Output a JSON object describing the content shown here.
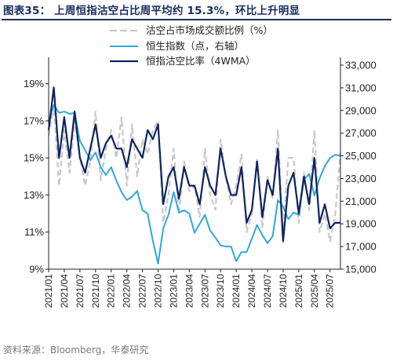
{
  "figure": {
    "title": "图表35：  上周恒指沽空占比周平均约 15.3%，环比上升明显",
    "source": "资料来源：Bloomberg，华泰研究"
  },
  "colors": {
    "short_ratio": "#c8c8c8",
    "hsi": "#2ea8df",
    "short_4wma": "#0e2461",
    "axis": "#222222",
    "title": "#1a2b5e"
  },
  "chart_data": {
    "type": "line",
    "legend": [
      "沽空占市场成交额比例（%）",
      "恒生指数（点，右轴）",
      "恒指沽空比率（4WMA）"
    ],
    "legend_position": "top-center",
    "y_left": {
      "ticks": [
        "9%",
        "11%",
        "13%",
        "15%",
        "17%",
        "19%"
      ],
      "range": [
        9,
        20
      ]
    },
    "y_right": {
      "ticks": [
        "15,000",
        "17,000",
        "19,000",
        "21,000",
        "23,000",
        "25,000",
        "27,000",
        "29,000",
        "31,000",
        "33,000"
      ],
      "range": [
        15000,
        33000
      ]
    },
    "x_ticks": [
      "2021/01",
      "2021/04",
      "2021/07",
      "2021/10",
      "2022/01",
      "2022/04",
      "2022/07",
      "2022/10",
      "2023/01",
      "2023/04",
      "2023/07",
      "2023/10",
      "2024/01",
      "2024/04",
      "2024/07",
      "2024/10",
      "2025/01",
      "2025/04",
      "2025/07"
    ],
    "x_range": [
      "2021/01",
      "2025/09"
    ],
    "grid": false,
    "series": [
      {
        "name": "沽空占市场成交额比例（%）",
        "axis": "left",
        "style": "dashed",
        "x": [
          "2021/01",
          "2021/02",
          "2021/03",
          "2021/04",
          "2021/05",
          "2021/06",
          "2021/07",
          "2021/08",
          "2021/09",
          "2021/10",
          "2021/11",
          "2021/12",
          "2022/01",
          "2022/02",
          "2022/03",
          "2022/04",
          "2022/05",
          "2022/06",
          "2022/07",
          "2022/08",
          "2022/09",
          "2022/10",
          "2022/11",
          "2022/12",
          "2023/01",
          "2023/02",
          "2023/03",
          "2023/04",
          "2023/05",
          "2023/06",
          "2023/07",
          "2023/08",
          "2023/09",
          "2023/10",
          "2023/11",
          "2023/12",
          "2024/01",
          "2024/02",
          "2024/03",
          "2024/04",
          "2024/05",
          "2024/06",
          "2024/07",
          "2024/08",
          "2024/09",
          "2024/10",
          "2024/11",
          "2024/12",
          "2025/01",
          "2025/02",
          "2025/03",
          "2025/04",
          "2025/05",
          "2025/06",
          "2025/07",
          "2025/08",
          "2025/09"
        ],
        "values": [
          16.2,
          17.8,
          13.5,
          16.5,
          14.2,
          17.0,
          15.0,
          13.5,
          14.8,
          17.5,
          13.8,
          15.5,
          16.5,
          15.0,
          17.2,
          13.5,
          16.8,
          14.0,
          16.0,
          15.2,
          16.5,
          17.0,
          11.5,
          13.0,
          15.5,
          12.0,
          14.8,
          13.2,
          13.5,
          11.8,
          15.5,
          13.0,
          12.2,
          16.0,
          14.0,
          12.5,
          13.5,
          15.2,
          11.0,
          12.0,
          15.0,
          11.2,
          14.0,
          12.8,
          16.5,
          11.0,
          15.0,
          15.0,
          11.5,
          14.2,
          12.2,
          16.5,
          11.0,
          12.0,
          10.5,
          12.0,
          15.3
        ]
      },
      {
        "name": "恒生指数（点，右轴）",
        "axis": "right",
        "style": "solid",
        "x": [
          "2021/01",
          "2021/02",
          "2021/03",
          "2021/04",
          "2021/05",
          "2021/06",
          "2021/07",
          "2021/08",
          "2021/09",
          "2021/10",
          "2021/11",
          "2021/12",
          "2022/01",
          "2022/02",
          "2022/03",
          "2022/04",
          "2022/05",
          "2022/06",
          "2022/07",
          "2022/08",
          "2022/09",
          "2022/10",
          "2022/11",
          "2022/12",
          "2023/01",
          "2023/02",
          "2023/03",
          "2023/04",
          "2023/05",
          "2023/06",
          "2023/07",
          "2023/08",
          "2023/09",
          "2023/10",
          "2023/11",
          "2023/12",
          "2024/01",
          "2024/02",
          "2024/03",
          "2024/04",
          "2024/05",
          "2024/06",
          "2024/07",
          "2024/08",
          "2024/09",
          "2024/10",
          "2024/11",
          "2024/12",
          "2025/01",
          "2025/02",
          "2025/03",
          "2025/04",
          "2025/05",
          "2025/06",
          "2025/07",
          "2025/08",
          "2025/09"
        ],
        "values": [
          28000,
          29500,
          28800,
          28900,
          28700,
          28800,
          26300,
          25500,
          24600,
          25300,
          24000,
          23300,
          24000,
          22800,
          21800,
          21100,
          21400,
          21900,
          20200,
          19900,
          17500,
          15500,
          18600,
          19800,
          21800,
          20000,
          20200,
          19900,
          18200,
          19000,
          19800,
          18400,
          17800,
          17100,
          17000,
          17000,
          15700,
          16500,
          16500,
          17700,
          18900,
          18000,
          17300,
          17900,
          21100,
          20500,
          19400,
          20000,
          19800,
          22900,
          23400,
          21500,
          23000,
          24100,
          24800,
          25100,
          25000
        ]
      },
      {
        "name": "恒指沽空比率（4WMA）",
        "axis": "left",
        "style": "solid",
        "x": [
          "2021/01",
          "2021/02",
          "2021/03",
          "2021/04",
          "2021/05",
          "2021/06",
          "2021/07",
          "2021/08",
          "2021/09",
          "2021/10",
          "2021/11",
          "2021/12",
          "2022/01",
          "2022/02",
          "2022/03",
          "2022/04",
          "2022/05",
          "2022/06",
          "2022/07",
          "2022/08",
          "2022/09",
          "2022/10",
          "2022/11",
          "2022/12",
          "2023/01",
          "2023/02",
          "2023/03",
          "2023/04",
          "2023/05",
          "2023/06",
          "2023/07",
          "2023/08",
          "2023/09",
          "2023/10",
          "2023/11",
          "2023/12",
          "2024/01",
          "2024/02",
          "2024/03",
          "2024/04",
          "2024/05",
          "2024/06",
          "2024/07",
          "2024/08",
          "2024/09",
          "2024/10",
          "2024/11",
          "2024/12",
          "2025/01",
          "2025/02",
          "2025/03",
          "2025/04",
          "2025/05",
          "2025/06",
          "2025/07",
          "2025/08",
          "2025/09"
        ],
        "values": [
          16.5,
          18.8,
          15.0,
          17.2,
          15.0,
          17.5,
          15.0,
          14.2,
          15.5,
          16.8,
          15.0,
          15.8,
          16.2,
          15.5,
          15.5,
          14.5,
          16.0,
          15.5,
          15.0,
          16.5,
          16.0,
          16.8,
          12.5,
          14.0,
          14.5,
          12.8,
          14.5,
          13.5,
          13.5,
          12.5,
          14.5,
          13.5,
          13.0,
          15.5,
          14.0,
          13.0,
          13.0,
          14.5,
          11.5,
          12.2,
          14.8,
          11.8,
          13.8,
          13.0,
          15.5,
          10.5,
          13.5,
          14.2,
          12.0,
          14.0,
          12.5,
          15.0,
          11.5,
          12.5,
          11.2,
          11.5,
          11.5
        ]
      }
    ]
  }
}
